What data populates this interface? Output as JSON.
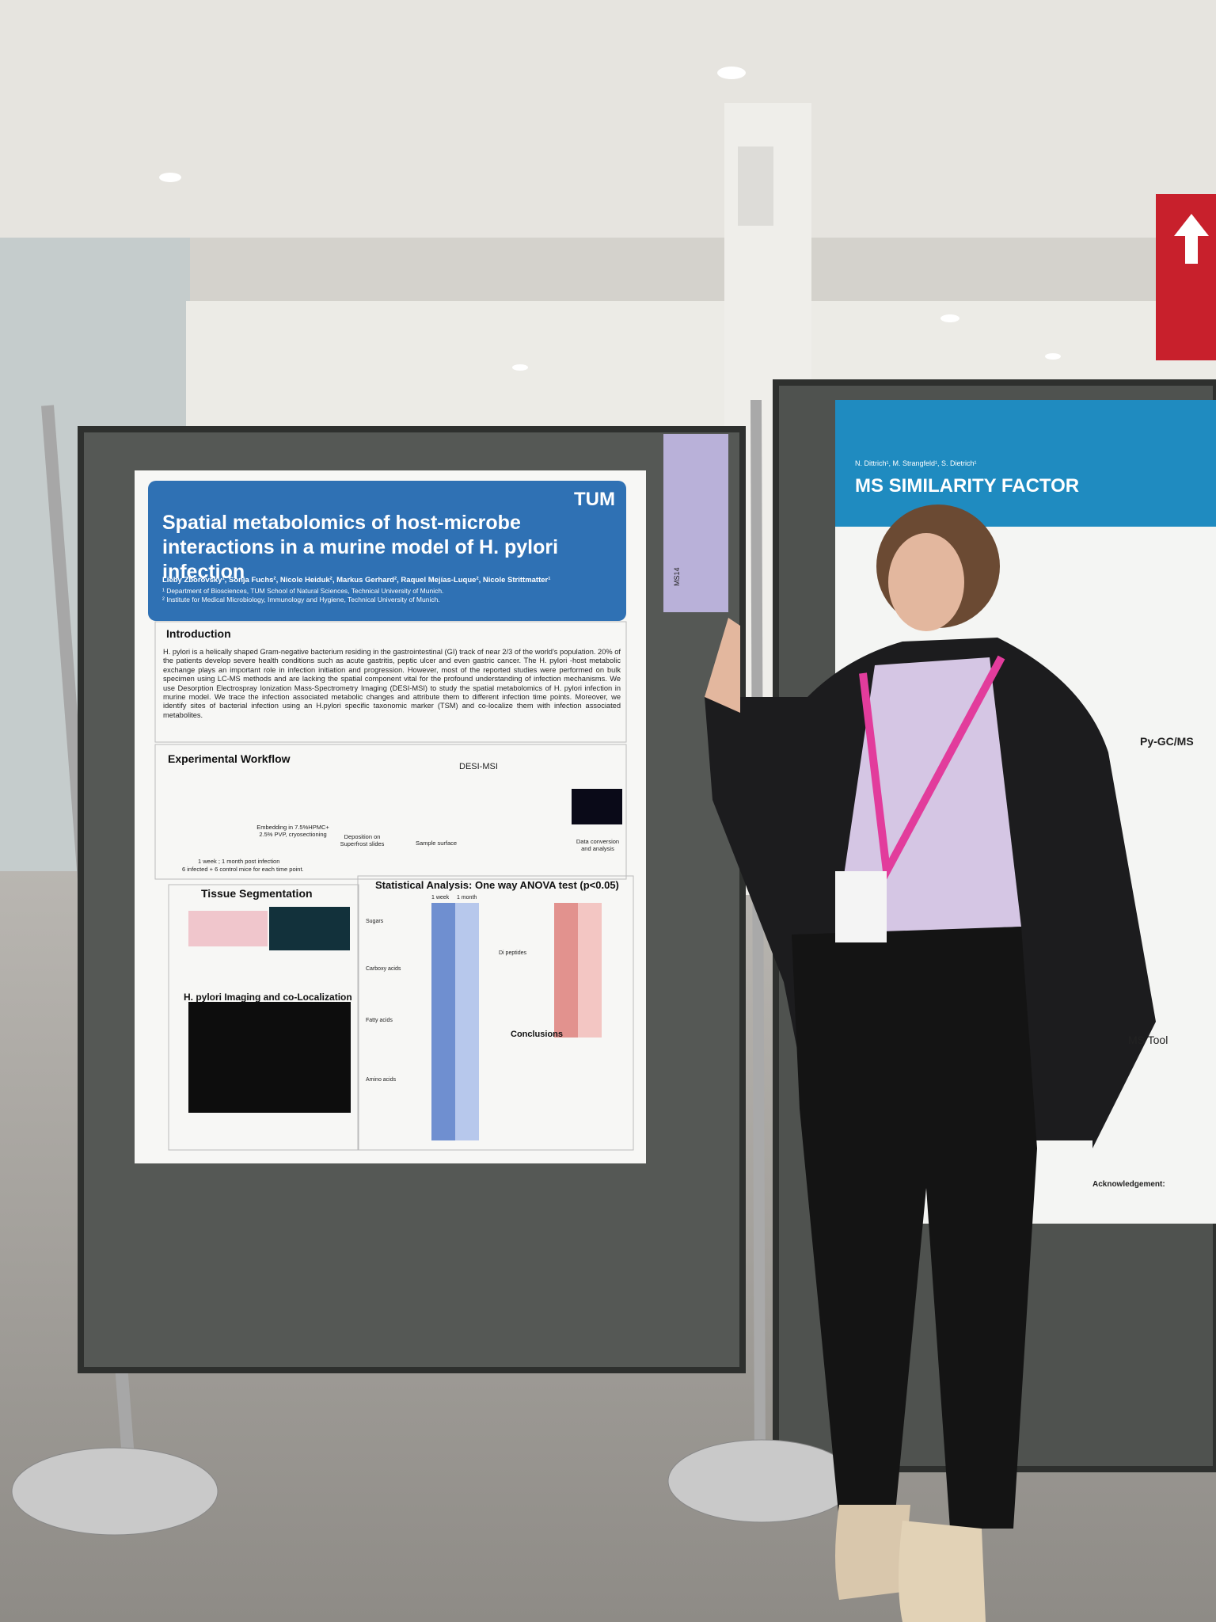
{
  "poster": {
    "title": "Spatial metabolomics of host-microbe interactions in a murine model of H. pylori infection",
    "logo": "TUM",
    "authors": "Lieby Zborovsky¹, Sonja Fuchs², Nicole Heiduk², Markus Gerhard², Raquel Mejías-Luque², Nicole Strittmatter¹",
    "affiliations": [
      "¹ Department of Biosciences, TUM School of Natural Sciences, Technical University of Munich.",
      "² Institute for Medical Microbiology, Immunology and Hygiene, Technical University of Munich."
    ],
    "introduction": {
      "heading": "Introduction",
      "text": "H. pylori is a helically shaped Gram-negative bacterium residing in the gastrointestinal (GI) track of near 2/3 of the world's population. 20% of the patients develop severe health conditions such as acute gastritis, peptic ulcer and even gastric cancer. The H. pylori -host metabolic exchange plays an important role in infection initiation and progression. However, most of the reported studies were performed on bulk specimen using LC-MS methods and are lacking the spatial component vital for the profound understanding of infection mechanisms. We use Desorption Electrospray Ionization Mass-Spectrometry Imaging (DESI-MSI) to study the spatial metabolomics of H. pylori infection in murine model. We trace the infection associated metabolic changes and attribute them to different infection time points. Moreover, we identify sites of bacterial infection using an H.pylori specific taxonomic marker (TSM) and co-localize them with infection associated metabolites."
    },
    "workflow": {
      "heading": "Experimental Workflow",
      "method": "DESI-MSI",
      "steps": [
        "Embedding in 7.5%HPMC+ 2.5% PVP, cryosectioning",
        "Deposition on Superfrost slides",
        "Sample surface",
        "Data conversion and analysis"
      ],
      "timing": "1 week ; 1 month post infection",
      "groups": "6 infected + 6 control mice for each time point."
    },
    "segmentation": {
      "heading": "Tissue Segmentation"
    },
    "imaging": {
      "heading": "H. pylori Imaging and co-Localization"
    },
    "statistics": {
      "heading": "Statistical Analysis: One way ANOVA test (p<0.05)",
      "columns": [
        "1 week",
        "1 month"
      ],
      "groups": [
        "Sugars",
        "Carboxy acids",
        "Fatty acids",
        "Amino acids",
        "Di peptides"
      ]
    },
    "conclusions": {
      "heading": "Conclusions"
    },
    "tag": "MS14"
  },
  "side_poster": {
    "authors": "N. Dittrich¹, M. Strangfeld¹, S. Dietrich¹",
    "title": "MS SIMILARITY FACTOR",
    "sections": [
      "Py-GC/MS",
      "MS Tool",
      "Acknowledgement:"
    ]
  }
}
